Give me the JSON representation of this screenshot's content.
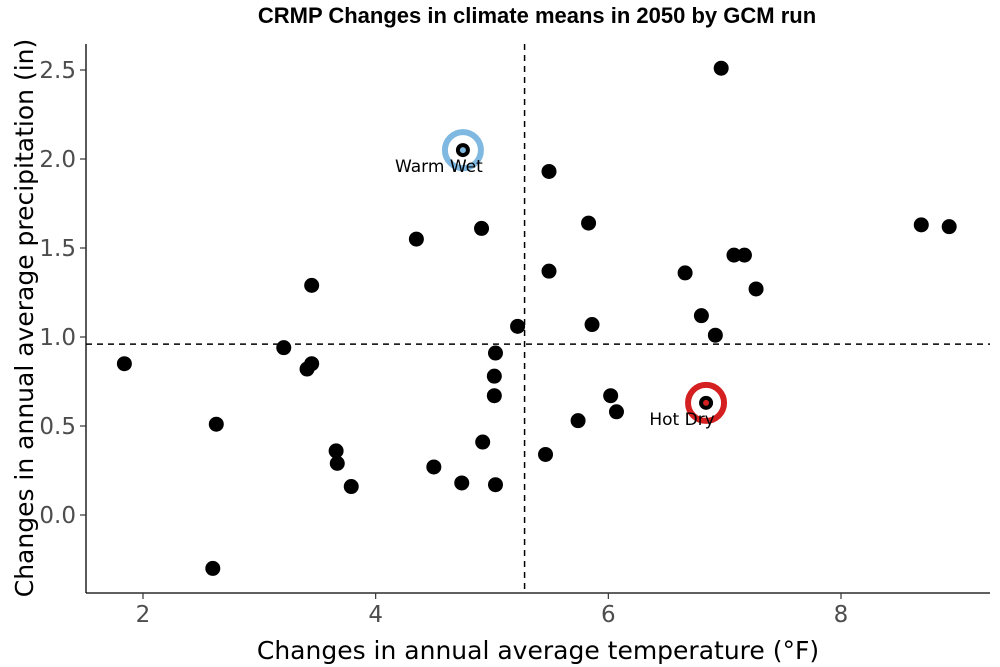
{
  "chart_data": {
    "type": "scatter",
    "title": "CRMP Changes in climate means in 2050 by GCM run",
    "xlabel": "Changes in annual average temperature (°F)",
    "ylabel": "Changes in annual average precipitation (in)",
    "xlim": [
      1.5,
      9.3
    ],
    "ylim": [
      -0.45,
      2.65
    ],
    "xticks": [
      2,
      4,
      6,
      8
    ],
    "yticks": [
      0.0,
      0.5,
      1.0,
      1.5,
      2.0,
      2.5
    ],
    "xtick_labels": [
      "2",
      "4",
      "6",
      "8"
    ],
    "ytick_labels": [
      "0.0",
      "0.5",
      "1.0",
      "1.5",
      "2.0",
      "2.5"
    ],
    "vline_x": 5.28,
    "hline_y": 0.96,
    "grid": false,
    "points": [
      {
        "x": 1.84,
        "y": 0.85
      },
      {
        "x": 2.6,
        "y": -0.3
      },
      {
        "x": 2.63,
        "y": 0.51
      },
      {
        "x": 3.21,
        "y": 0.94
      },
      {
        "x": 3.41,
        "y": 0.82
      },
      {
        "x": 3.45,
        "y": 0.85
      },
      {
        "x": 3.45,
        "y": 1.29
      },
      {
        "x": 3.66,
        "y": 0.36
      },
      {
        "x": 3.67,
        "y": 0.29
      },
      {
        "x": 3.79,
        "y": 0.16
      },
      {
        "x": 4.35,
        "y": 1.55
      },
      {
        "x": 4.5,
        "y": 0.27
      },
      {
        "x": 4.74,
        "y": 0.18
      },
      {
        "x": 4.75,
        "y": 2.05
      },
      {
        "x": 4.91,
        "y": 1.61
      },
      {
        "x": 4.92,
        "y": 0.41
      },
      {
        "x": 5.02,
        "y": 0.67
      },
      {
        "x": 5.02,
        "y": 0.78
      },
      {
        "x": 5.03,
        "y": 0.91
      },
      {
        "x": 5.03,
        "y": 0.17
      },
      {
        "x": 5.22,
        "y": 1.06
      },
      {
        "x": 5.46,
        "y": 0.34
      },
      {
        "x": 5.49,
        "y": 1.37
      },
      {
        "x": 5.49,
        "y": 1.93
      },
      {
        "x": 5.74,
        "y": 0.53
      },
      {
        "x": 5.83,
        "y": 1.64
      },
      {
        "x": 5.86,
        "y": 1.07
      },
      {
        "x": 6.02,
        "y": 0.67
      },
      {
        "x": 6.07,
        "y": 0.58
      },
      {
        "x": 6.66,
        "y": 1.36
      },
      {
        "x": 6.79,
        "y": 0.66
      },
      {
        "x": 6.8,
        "y": 1.12
      },
      {
        "x": 6.82,
        "y": 0.64
      },
      {
        "x": 6.84,
        "y": 0.62
      },
      {
        "x": 6.92,
        "y": 1.01
      },
      {
        "x": 6.97,
        "y": 2.51
      },
      {
        "x": 7.08,
        "y": 1.46
      },
      {
        "x": 7.17,
        "y": 1.46
      },
      {
        "x": 7.27,
        "y": 1.27
      },
      {
        "x": 8.69,
        "y": 1.63
      },
      {
        "x": 8.93,
        "y": 1.62
      }
    ],
    "highlights": [
      {
        "label": "Warm Wet",
        "x": 4.75,
        "y": 2.05,
        "color": "#7fb8e0"
      },
      {
        "label": "Hot Dry",
        "x": 6.84,
        "y": 0.63,
        "color": "#d42020"
      }
    ]
  }
}
